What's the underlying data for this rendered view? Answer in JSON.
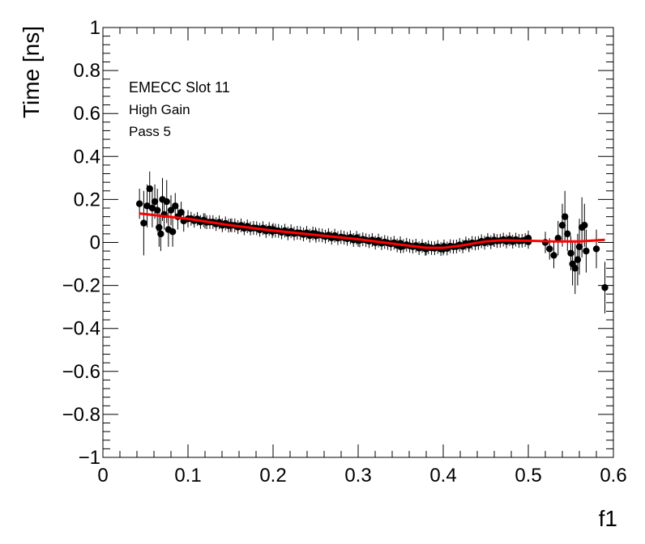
{
  "chart_data": {
    "type": "scatter",
    "title": "",
    "xlabel": "f1",
    "ylabel": "Time [ns]",
    "xlim": [
      0,
      0.6
    ],
    "ylim": [
      -1,
      1
    ],
    "x_ticks": [
      0,
      0.1,
      0.2,
      0.3,
      0.4,
      0.5,
      0.6
    ],
    "x_tick_labels": [
      "0",
      "0.1",
      "0.2",
      "0.3",
      "0.4",
      "0.5",
      "0.6"
    ],
    "y_ticks": [
      -1,
      -0.8,
      -0.6,
      -0.4,
      -0.2,
      0,
      0.2,
      0.4,
      0.6,
      0.8,
      1
    ],
    "y_tick_labels": [
      "−1",
      "−0.8",
      "−0.6",
      "−0.4",
      "−0.2",
      "0",
      "0.2",
      "0.4",
      "0.6",
      "0.8",
      "1"
    ],
    "annotations": [
      "EMECC Slot 11",
      "High Gain",
      "Pass 5"
    ],
    "grid": false,
    "colors": {
      "points": "#000000",
      "fit": "#ff0000"
    },
    "series": [
      {
        "values": [
          {
            "x": 0.043,
            "y": 0.18,
            "err": 0.07
          },
          {
            "x": 0.048,
            "y": 0.09,
            "err": 0.15
          },
          {
            "x": 0.052,
            "y": 0.17,
            "err": 0.1
          },
          {
            "x": 0.055,
            "y": 0.25,
            "err": 0.08
          },
          {
            "x": 0.058,
            "y": 0.16,
            "err": 0.09
          },
          {
            "x": 0.061,
            "y": 0.19,
            "err": 0.08
          },
          {
            "x": 0.064,
            "y": 0.15,
            "err": 0.1
          },
          {
            "x": 0.066,
            "y": 0.07,
            "err": 0.09
          },
          {
            "x": 0.068,
            "y": 0.04,
            "err": 0.08
          },
          {
            "x": 0.07,
            "y": 0.2,
            "err": 0.1
          },
          {
            "x": 0.072,
            "y": 0.13,
            "err": 0.07
          },
          {
            "x": 0.075,
            "y": 0.19,
            "err": 0.1
          },
          {
            "x": 0.077,
            "y": 0.06,
            "err": 0.08
          },
          {
            "x": 0.08,
            "y": 0.15,
            "err": 0.07
          },
          {
            "x": 0.082,
            "y": 0.05,
            "err": 0.07
          },
          {
            "x": 0.085,
            "y": 0.17,
            "err": 0.06
          },
          {
            "x": 0.088,
            "y": 0.12,
            "err": 0.06
          },
          {
            "x": 0.092,
            "y": 0.14,
            "err": 0.05
          },
          {
            "x": 0.095,
            "y": 0.1,
            "err": 0.05
          },
          {
            "x": 0.1,
            "y": 0.11,
            "err": 0.04
          },
          {
            "x": 0.12,
            "y": 0.1,
            "err": 0.035
          },
          {
            "x": 0.15,
            "y": 0.08,
            "err": 0.03
          },
          {
            "x": 0.2,
            "y": 0.06,
            "err": 0.03
          },
          {
            "x": 0.25,
            "y": 0.04,
            "err": 0.03
          },
          {
            "x": 0.3,
            "y": 0.01,
            "err": 0.03
          },
          {
            "x": 0.35,
            "y": -0.02,
            "err": 0.03
          },
          {
            "x": 0.38,
            "y": -0.03,
            "err": 0.03
          },
          {
            "x": 0.4,
            "y": -0.03,
            "err": 0.03
          },
          {
            "x": 0.43,
            "y": -0.01,
            "err": 0.03
          },
          {
            "x": 0.46,
            "y": 0.01,
            "err": 0.03
          },
          {
            "x": 0.5,
            "y": 0.02,
            "err": 0.035
          },
          {
            "x": 0.52,
            "y": 0.0,
            "err": 0.05
          },
          {
            "x": 0.525,
            "y": -0.03,
            "err": 0.05
          },
          {
            "x": 0.53,
            "y": -0.06,
            "err": 0.06
          },
          {
            "x": 0.535,
            "y": 0.02,
            "err": 0.08
          },
          {
            "x": 0.54,
            "y": 0.08,
            "err": 0.1
          },
          {
            "x": 0.543,
            "y": 0.12,
            "err": 0.12
          },
          {
            "x": 0.546,
            "y": 0.04,
            "err": 0.08
          },
          {
            "x": 0.55,
            "y": -0.05,
            "err": 0.08
          },
          {
            "x": 0.552,
            "y": -0.1,
            "err": 0.1
          },
          {
            "x": 0.555,
            "y": -0.12,
            "err": 0.12
          },
          {
            "x": 0.558,
            "y": -0.08,
            "err": 0.12
          },
          {
            "x": 0.56,
            "y": -0.02,
            "err": 0.13
          },
          {
            "x": 0.563,
            "y": 0.07,
            "err": 0.14
          },
          {
            "x": 0.566,
            "y": 0.08,
            "err": 0.1
          },
          {
            "x": 0.568,
            "y": -0.04,
            "err": 0.1
          },
          {
            "x": 0.58,
            "y": -0.03,
            "err": 0.09
          },
          {
            "x": 0.59,
            "y": -0.21,
            "err": 0.12
          }
        ],
        "bulk_points": {
          "x_start": 0.1,
          "x_end": 0.5,
          "count": 110
        }
      }
    ],
    "fit_curve": {
      "x": [
        0.043,
        0.1,
        0.15,
        0.2,
        0.25,
        0.3,
        0.35,
        0.38,
        0.4,
        0.42,
        0.45,
        0.47,
        0.5,
        0.53,
        0.56,
        0.59
      ],
      "y": [
        0.135,
        0.11,
        0.08,
        0.055,
        0.035,
        0.015,
        -0.01,
        -0.025,
        -0.025,
        -0.015,
        0.005,
        0.01,
        0.008,
        0.005,
        0.005,
        0.012
      ]
    }
  }
}
